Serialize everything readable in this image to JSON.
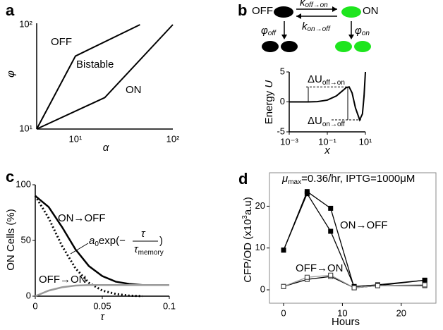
{
  "chart_data": [
    {
      "type": "line",
      "label": "a",
      "xlabel": "α",
      "ylabel": "φ",
      "xscale": "log",
      "yscale": "log",
      "xlim": [
        4,
        100
      ],
      "ylim": [
        10,
        100
      ],
      "xticks": [
        {
          "value": 10,
          "label": "10¹"
        },
        {
          "value": 100,
          "label": "10²"
        }
      ],
      "yticks": [
        {
          "value": 10,
          "label": "10¹"
        },
        {
          "value": 100,
          "label": "10²"
        }
      ],
      "series": [
        {
          "color": "#000000",
          "x": [
            4,
            10,
            46
          ],
          "values": [
            10,
            50,
            100
          ]
        },
        {
          "color": "#000000",
          "x": [
            4,
            20,
            100
          ],
          "values": [
            10,
            20,
            100
          ]
        }
      ],
      "annotations": [
        "OFF",
        "Bistable",
        "ON"
      ]
    },
    {
      "type": "line",
      "xlabel": "x",
      "ylabel": {
        "text": "Energy ",
        "symbol": "U"
      },
      "xscale": "log",
      "xlim": [
        0.001,
        10
      ],
      "ylim": [
        -5,
        5
      ],
      "xticks": [
        {
          "value": 0.001,
          "label": "10⁻³"
        },
        {
          "value": 0.1,
          "label": "10⁻¹"
        },
        {
          "value": 10,
          "label": "10¹"
        }
      ],
      "yticks": [
        5,
        0,
        -5
      ],
      "series": [
        {
          "color": "#000000",
          "x": [
            0.001,
            0.01,
            0.03,
            0.1,
            0.3,
            0.6,
            1,
            1.4,
            2,
            3,
            5,
            7,
            8.5,
            10
          ],
          "values": [
            0,
            0,
            0.05,
            0.3,
            1,
            1.8,
            2.4,
            2.5,
            1.5,
            -1,
            -3,
            -2,
            1,
            5
          ]
        }
      ],
      "annotations": [
        {
          "symbol": "ΔU",
          "subscript": "off→on"
        },
        {
          "symbol": "ΔU",
          "subscript": "on→off"
        }
      ]
    },
    {
      "type": "line",
      "label": "c",
      "xlabel": "τ",
      "ylabel": "ON Cells (%)",
      "xlim": [
        0,
        0.1
      ],
      "ylim": [
        0,
        100
      ],
      "xticks": [
        0,
        0.05,
        0.1
      ],
      "yticks": [
        0,
        50,
        100
      ],
      "series": [
        {
          "name": "ON→OFF",
          "color": "#000000",
          "width": 2.5,
          "x": [
            0,
            0.01,
            0.02,
            0.03,
            0.04,
            0.05,
            0.06,
            0.07,
            0.08,
            0.1
          ],
          "values": [
            90,
            80,
            62,
            42,
            27,
            18,
            13,
            11,
            10,
            10
          ]
        },
        {
          "color": "#000000",
          "width": 2.5,
          "dash": "dotted",
          "x": [
            0,
            0.01,
            0.02,
            0.03,
            0.04,
            0.05,
            0.06,
            0.07,
            0.08
          ],
          "values": [
            90,
            70,
            45,
            25,
            12,
            5,
            2,
            0.5,
            0
          ]
        },
        {
          "name": "OFF→ON",
          "color": "#999999",
          "width": 2.5,
          "x": [
            0,
            0.01,
            0.02,
            0.03,
            0.04,
            0.05,
            0.1
          ],
          "values": [
            0,
            5,
            8,
            9.5,
            10,
            10,
            10
          ]
        }
      ],
      "formula": {
        "coef": "a",
        "coef_sub": "0",
        "func": "exp(−",
        "num": "τ",
        "den": "τ",
        "den_sub": "memory",
        "close": ")"
      }
    },
    {
      "type": "line",
      "label": "d",
      "xlabel": "Hours",
      "ylabel": {
        "text": "CFP/OD (x10",
        "sup": "3",
        "rest": "a.u)"
      },
      "title": {
        "symbol": "μ",
        "subscript": "max",
        "rest": "=0.36/hr, IPTG=1000μM"
      },
      "xlim": [
        -2.4,
        25.9
      ],
      "ylim": [
        -3.2,
        28
      ],
      "xticks": [
        0,
        10,
        20
      ],
      "yticks": [
        0,
        10,
        20
      ],
      "series": [
        {
          "color": "#000000",
          "marker": "filled",
          "x": [
            0,
            4,
            8,
            12,
            16,
            24
          ],
          "values": [
            9.5,
            23.5,
            19.5,
            0.5,
            1,
            2.3
          ]
        },
        {
          "color": "#000000",
          "marker": "filled",
          "x": [
            0,
            4,
            8,
            12,
            16,
            24
          ],
          "values": [
            9.5,
            23,
            14,
            0.8,
            1.2,
            2.3
          ]
        },
        {
          "color": "#000000",
          "marker": "open",
          "x": [
            0,
            4,
            8,
            12,
            16,
            24
          ],
          "values": [
            0.8,
            2.5,
            3.2,
            0.5,
            1,
            1
          ]
        },
        {
          "color": "#999999",
          "marker": "open",
          "x": [
            0,
            4,
            8,
            12,
            16,
            24
          ],
          "values": [
            0.8,
            3,
            3.5,
            0.5,
            1,
            1.2
          ]
        }
      ],
      "annotations": [
        "ON→OFF",
        "OFF→ON"
      ]
    }
  ],
  "diagram": {
    "label": "b",
    "states": [
      "OFF",
      "ON"
    ],
    "k_forward": {
      "symbol": "k",
      "subscript": "off→on"
    },
    "k_backward": {
      "symbol": "k",
      "subscript": "on→off"
    },
    "phi_off": {
      "symbol": "φ",
      "subscript": "off"
    },
    "phi_on": {
      "symbol": "φ",
      "subscript": "on"
    }
  }
}
